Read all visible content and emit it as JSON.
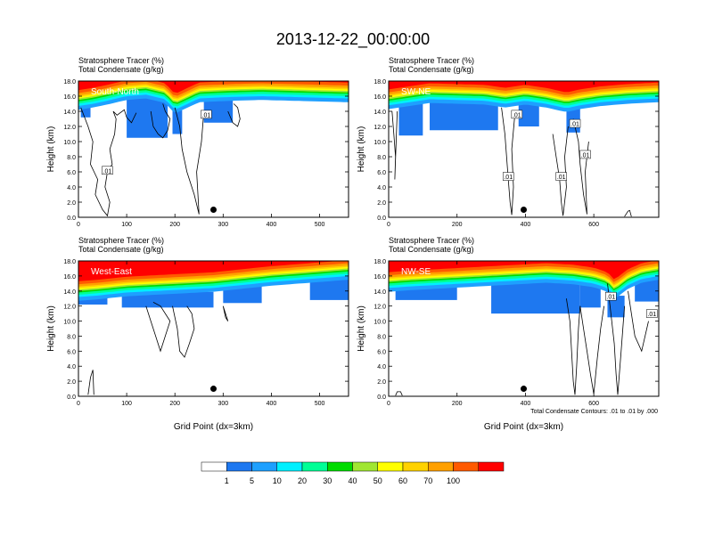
{
  "title": "2013-12-22_00:00:00",
  "footnote": "Total Condensate Contours: .01 to .01 by .000",
  "colors": {
    "levels": [
      "#ffffff",
      "#1e78f0",
      "#1ea0ff",
      "#00f0ff",
      "#00ff96",
      "#00dc00",
      "#a0e632",
      "#ffff00",
      "#ffd200",
      "#ffa000",
      "#ff5a00",
      "#ff0000"
    ],
    "contour": "#000000",
    "marker": "#000000"
  },
  "colorbar": {
    "tick_labels": [
      "1",
      "5",
      "10",
      "20",
      "30",
      "40",
      "50",
      "60",
      "70",
      "100"
    ]
  },
  "chart_data": [
    {
      "type": "heatmap",
      "panel": "top-left",
      "label": "South-North",
      "title_line1": "Stratosphere Tracer   (%)",
      "title_line2": "Total Condensate   (g/kg)",
      "ylabel": "Height (km)",
      "xlabel": "",
      "xlim": [
        0,
        560
      ],
      "ylim": [
        0,
        18
      ],
      "xticks": [
        0,
        100,
        200,
        300,
        400,
        500
      ],
      "xtick_labels": [
        "0",
        "100",
        "200",
        "300",
        "400",
        "500"
      ],
      "yticks": [
        0,
        2,
        4,
        6,
        8,
        10,
        12,
        14,
        16,
        18
      ],
      "ytick_labels": [
        "0.0",
        "2.0",
        "4.0",
        "6.0",
        "8.0",
        "10.0",
        "12.0",
        "14.0",
        "16.0",
        "18.0"
      ],
      "marker_x": 280,
      "marker_y": 1.0,
      "tracer_base": {
        "x": [
          0,
          30,
          60,
          100,
          140,
          180,
          200,
          220,
          250,
          280,
          320,
          380,
          440,
          500,
          560
        ],
        "height": [
          14.5,
          14.8,
          15.2,
          15.8,
          16.0,
          15.4,
          14.0,
          14.6,
          15.5,
          15.6,
          15.7,
          15.8,
          15.7,
          15.6,
          15.5
        ]
      },
      "blue_patches": [
        {
          "x": [
            5,
            25
          ],
          "bottom": 13.2
        },
        {
          "x": [
            100,
            185
          ],
          "bottom": 10.5
        },
        {
          "x": [
            195,
            215
          ],
          "bottom": 11.0
        },
        {
          "x": [
            260,
            320
          ],
          "bottom": 12.5
        }
      ],
      "contour_label": ".01",
      "contour_label_points": [
        [
          60,
          6.2
        ],
        [
          265,
          13.6
        ]
      ],
      "contour_lines": [
        {
          "x": [
            5,
            20,
            30,
            25,
            40,
            35,
            50,
            60,
            65,
            55,
            60,
            70,
            65,
            75,
            78,
            72,
            80,
            95,
            100,
            110,
            120
          ],
          "y": [
            14.5,
            12,
            10,
            7,
            5,
            3,
            1,
            0.2,
            2,
            4,
            6,
            7,
            9,
            11,
            13,
            14,
            13.5,
            14.2,
            13.2,
            12.5,
            13.8
          ]
        },
        {
          "x": [
            200,
            210,
            215,
            225,
            240,
            250,
            245,
            255,
            260
          ],
          "y": [
            14.5,
            12,
            9,
            6,
            3,
            0.4,
            6,
            10,
            14
          ]
        },
        {
          "x": [
            150,
            155,
            165,
            175,
            185,
            190,
            180,
            175
          ],
          "y": [
            14,
            12,
            11,
            10.5,
            11.5,
            13,
            14,
            15
          ]
        },
        {
          "x": [
            310,
            320,
            330,
            335,
            330,
            322
          ],
          "y": [
            14,
            12.5,
            12,
            13,
            14.5,
            15
          ]
        }
      ]
    },
    {
      "type": "heatmap",
      "panel": "top-right",
      "label": "SW-NE",
      "title_line1": "Stratosphere Tracer   (%)",
      "title_line2": "Total Condensate   (g/kg)",
      "ylabel": "Height (km)",
      "xlabel": "",
      "xlim": [
        0,
        790
      ],
      "ylim": [
        0,
        18
      ],
      "xticks": [
        0,
        200,
        400,
        600
      ],
      "xtick_labels": [
        "0",
        "200",
        "400",
        "600"
      ],
      "yticks": [
        0,
        2,
        4,
        6,
        8,
        10,
        12,
        14,
        16,
        18
      ],
      "ytick_labels": [
        "0.0",
        "2.0",
        "4.0",
        "6.0",
        "8.0",
        "10.0",
        "12.0",
        "14.0",
        "16.0",
        "18.0"
      ],
      "marker_x": 395,
      "marker_y": 1.0,
      "tracer_base": {
        "x": [
          0,
          60,
          120,
          200,
          280,
          340,
          400,
          460,
          520,
          560,
          620,
          700,
          790
        ],
        "height": [
          14.6,
          15.0,
          15.4,
          15.3,
          15.2,
          14.8,
          15.2,
          14.8,
          14.2,
          14.6,
          15.0,
          15.3,
          15.5
        ]
      },
      "blue_patches": [
        {
          "x": [
            30,
            100
          ],
          "bottom": 10.8
        },
        {
          "x": [
            120,
            320
          ],
          "bottom": 11.5
        },
        {
          "x": [
            380,
            440
          ],
          "bottom": 12.0
        },
        {
          "x": [
            520,
            560
          ],
          "bottom": 11.2
        }
      ],
      "contour_label": ".01",
      "contour_label_points": [
        [
          350,
          5.4
        ],
        [
          375,
          13.6
        ],
        [
          545,
          12.4
        ],
        [
          505,
          5.4
        ],
        [
          575,
          8.3
        ]
      ],
      "contour_lines": [
        {
          "x": [
            10,
            15,
            20,
            18,
            25
          ],
          "y": [
            14,
            11,
            8,
            5,
            14
          ]
        },
        {
          "x": [
            330,
            340,
            345,
            350,
            355,
            360,
            365,
            360,
            370
          ],
          "y": [
            14.5,
            11,
            8,
            5,
            2,
            0.3,
            4,
            9,
            14
          ]
        },
        {
          "x": [
            480,
            490,
            500,
            505,
            510,
            520,
            515,
            525
          ],
          "y": [
            11,
            8,
            5,
            2,
            0.2,
            4,
            8,
            12
          ]
        },
        {
          "x": [
            540,
            555,
            560,
            570,
            580,
            575,
            585
          ],
          "y": [
            13,
            10,
            7,
            3,
            0.4,
            6,
            10
          ]
        },
        {
          "x": [
            690,
            700,
            705,
            710
          ],
          "y": [
            0.1,
            0.8,
            0.9,
            0.1
          ]
        }
      ]
    },
    {
      "type": "heatmap",
      "panel": "bottom-left",
      "label": "West-East",
      "title_line1": "Stratosphere Tracer   (%)",
      "title_line2": "Total Condensate   (g/kg)",
      "ylabel": "Height (km)",
      "xlabel": "Grid Point (dx=3km)",
      "xlim": [
        0,
        560
      ],
      "ylim": [
        0,
        18
      ],
      "xticks": [
        0,
        100,
        200,
        300,
        400,
        500
      ],
      "xtick_labels": [
        "0",
        "100",
        "200",
        "300",
        "400",
        "500"
      ],
      "yticks": [
        0,
        2,
        4,
        6,
        8,
        10,
        12,
        14,
        16,
        18
      ],
      "ytick_labels": [
        "0.0",
        "2.0",
        "4.0",
        "6.0",
        "8.0",
        "10.0",
        "12.0",
        "14.0",
        "16.0",
        "18.0"
      ],
      "marker_x": 280,
      "marker_y": 1.0,
      "tracer_base": {
        "x": [
          0,
          40,
          100,
          160,
          220,
          280,
          340,
          400,
          460,
          520,
          560
        ],
        "height": [
          13.0,
          13.2,
          13.6,
          13.8,
          14.0,
          14.2,
          14.6,
          15.0,
          15.3,
          15.6,
          15.8
        ]
      },
      "blue_patches": [
        {
          "x": [
            0,
            60
          ],
          "bottom": 12.2
        },
        {
          "x": [
            90,
            280
          ],
          "bottom": 11.8
        },
        {
          "x": [
            300,
            380
          ],
          "bottom": 12.4
        },
        {
          "x": [
            480,
            560
          ],
          "bottom": 12.8
        }
      ],
      "contour_label": ".01",
      "contour_label_points": [],
      "contour_lines": [
        {
          "x": [
            140,
            150,
            160,
            170,
            180,
            190,
            170,
            155
          ],
          "y": [
            12,
            10,
            8,
            6,
            8,
            10,
            12,
            12.5
          ]
        },
        {
          "x": [
            195,
            205,
            210,
            220,
            230,
            240,
            235,
            225
          ],
          "y": [
            12,
            9,
            6,
            5.2,
            7,
            9,
            11,
            12
          ]
        },
        {
          "x": [
            20,
            25,
            30,
            32
          ],
          "y": [
            0.2,
            2.5,
            3.5,
            0.2
          ]
        },
        {
          "x": [
            300,
            305,
            310,
            305,
            300
          ],
          "y": [
            12,
            10.5,
            10,
            11,
            12
          ]
        }
      ]
    },
    {
      "type": "heatmap",
      "panel": "bottom-right",
      "label": "NW-SE",
      "title_line1": "Stratosphere Tracer   (%)",
      "title_line2": "Total Condensate   (g/kg)",
      "ylabel": "Height (km)",
      "xlabel": "Grid Point (dx=3km)",
      "xlim": [
        0,
        790
      ],
      "ylim": [
        0,
        18
      ],
      "xticks": [
        0,
        200,
        400,
        600
      ],
      "xtick_labels": [
        "0",
        "200",
        "400",
        "600"
      ],
      "yticks": [
        0,
        2,
        4,
        6,
        8,
        10,
        12,
        14,
        16,
        18
      ],
      "ytick_labels": [
        "0.0",
        "2.0",
        "4.0",
        "6.0",
        "8.0",
        "10.0",
        "12.0",
        "14.0",
        "16.0",
        "18.0"
      ],
      "marker_x": 395,
      "marker_y": 1.0,
      "tracer_base": {
        "x": [
          0,
          60,
          140,
          220,
          300,
          380,
          460,
          540,
          600,
          640,
          660,
          700,
          740,
          790
        ],
        "height": [
          14.2,
          14.4,
          14.6,
          14.8,
          15.0,
          15.2,
          15.4,
          15.2,
          14.8,
          14.2,
          13.2,
          14.6,
          15.4,
          15.8
        ]
      },
      "blue_patches": [
        {
          "x": [
            20,
            200
          ],
          "bottom": 12.8
        },
        {
          "x": [
            300,
            560
          ],
          "bottom": 11.0
        },
        {
          "x": [
            560,
            620
          ],
          "bottom": 11.8
        },
        {
          "x": [
            640,
            690
          ],
          "bottom": 10.5
        },
        {
          "x": [
            720,
            790
          ],
          "bottom": 12.6
        }
      ],
      "contour_label": ".01",
      "contour_label_points": [
        [
          650,
          13.3
        ],
        [
          770,
          11.0
        ]
      ],
      "contour_lines": [
        {
          "x": [
            520,
            530,
            535,
            540,
            545,
            550,
            555,
            560
          ],
          "y": [
            13,
            10,
            6,
            2,
            0.2,
            4,
            9,
            12
          ]
        },
        {
          "x": [
            560,
            570,
            580,
            590,
            600,
            610,
            620,
            630
          ],
          "y": [
            12,
            9,
            6,
            3,
            0.3,
            5,
            9,
            12
          ]
        },
        {
          "x": [
            640,
            650,
            660,
            665,
            670,
            680,
            690
          ],
          "y": [
            15,
            11,
            7,
            3,
            0.2,
            6,
            12
          ]
        },
        {
          "x": [
            20,
            25,
            35,
            40
          ],
          "y": [
            0.1,
            0.6,
            0.6,
            0.1
          ]
        },
        {
          "x": [
            700,
            710,
            720,
            740,
            760
          ],
          "y": [
            14,
            11,
            8,
            6,
            10
          ]
        }
      ]
    }
  ]
}
